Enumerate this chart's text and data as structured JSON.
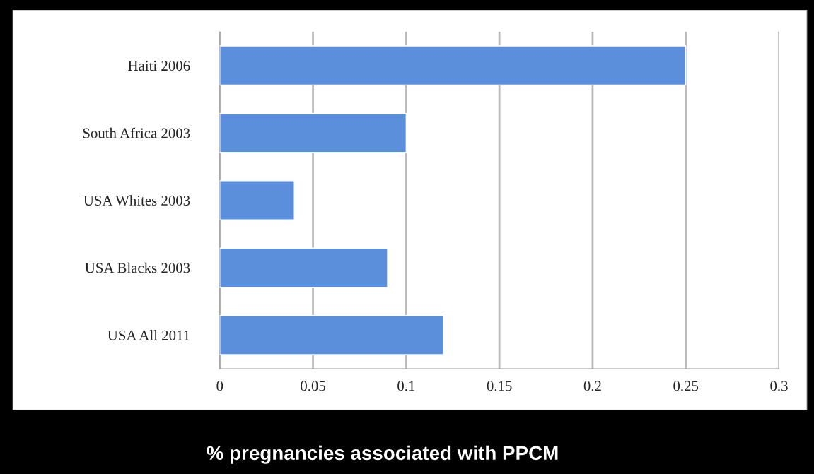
{
  "chart_data": {
    "type": "bar",
    "orientation": "horizontal",
    "xlabel": "% pregnancies associated with PPCM",
    "categories": [
      "Haiti 2006",
      "South Africa 2003",
      "USA Whites 2003",
      "USA Blacks 2003",
      "USA All 2011"
    ],
    "values": [
      0.25,
      0.1,
      0.04,
      0.09,
      0.12
    ],
    "color": "#5b8fdc",
    "xlim": [
      0,
      0.3
    ],
    "xticks": [
      0,
      0.05,
      0.1,
      0.15,
      0.2,
      0.25,
      0.3
    ],
    "grid": "x",
    "legend": false
  }
}
